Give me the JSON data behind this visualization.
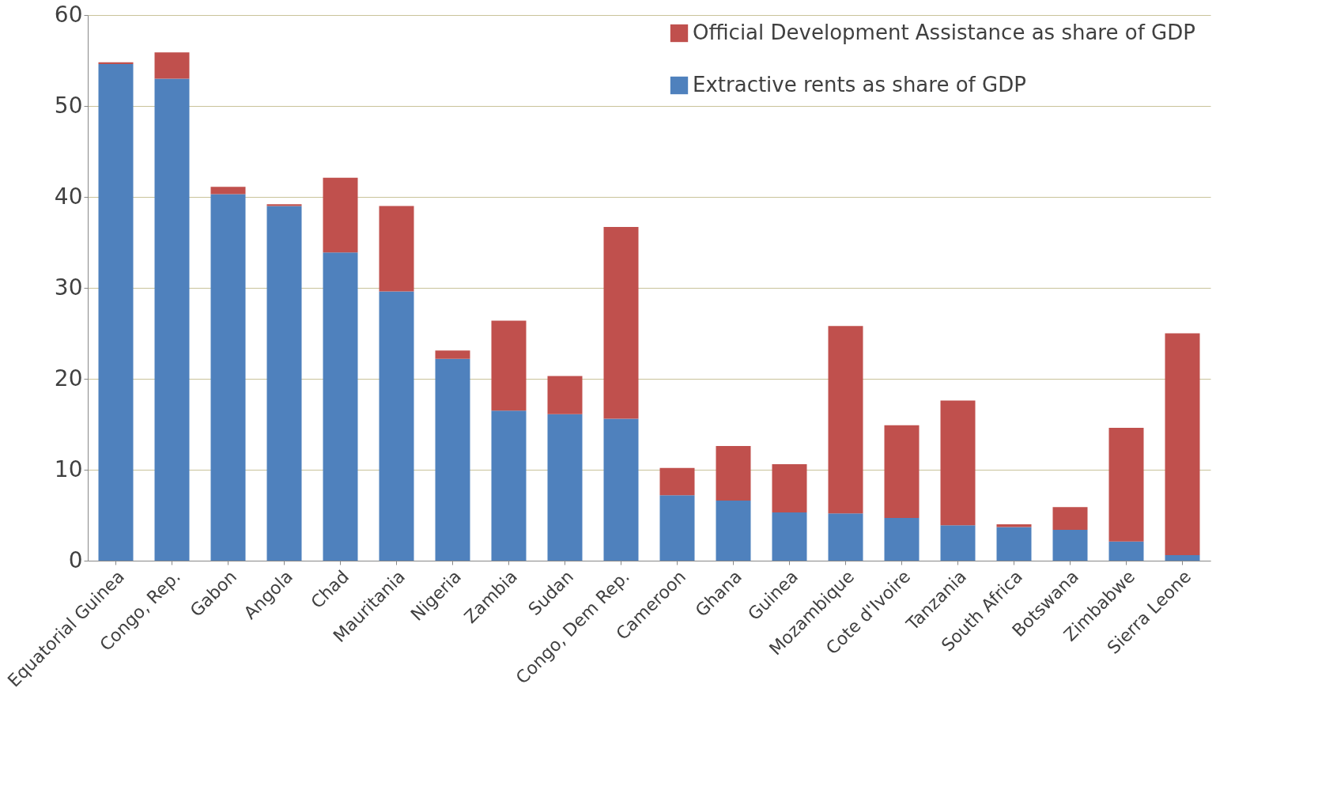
{
  "chart_data": {
    "type": "bar",
    "stacked": true,
    "categories": [
      "Equatorial Guinea",
      "Congo, Rep.",
      "Gabon",
      "Angola",
      "Chad",
      "Mauritania",
      "Nigeria",
      "Zambia",
      "Sudan",
      "Congo, Dem Rep.",
      "Cameroon",
      "Ghana",
      "Guinea",
      "Mozambique",
      "Cote d'Ivoire",
      "Tanzania",
      "South Africa",
      "Botswana",
      "Zimbabwe",
      "Sierra Leone"
    ],
    "series": [
      {
        "name": "Extractive rents as share of GDP",
        "color": "#4f81bd",
        "values": [
          54.6,
          53.0,
          40.3,
          39.0,
          33.9,
          29.6,
          22.2,
          16.5,
          16.1,
          15.6,
          7.2,
          6.6,
          5.3,
          5.2,
          4.7,
          3.9,
          3.7,
          3.4,
          2.1,
          0.6
        ]
      },
      {
        "name": "Official Development  Assistance as share of GDP",
        "color": "#c0504d",
        "values": [
          0.2,
          2.9,
          0.8,
          0.2,
          8.2,
          9.4,
          0.9,
          9.9,
          4.2,
          21.1,
          3.0,
          6.0,
          5.3,
          20.6,
          10.2,
          13.7,
          0.3,
          2.5,
          12.5,
          24.4
        ]
      }
    ],
    "ylim": [
      0,
      60
    ],
    "yticks": [
      0,
      10,
      20,
      30,
      40,
      50,
      60
    ],
    "grid": "y",
    "legend": "top right"
  }
}
